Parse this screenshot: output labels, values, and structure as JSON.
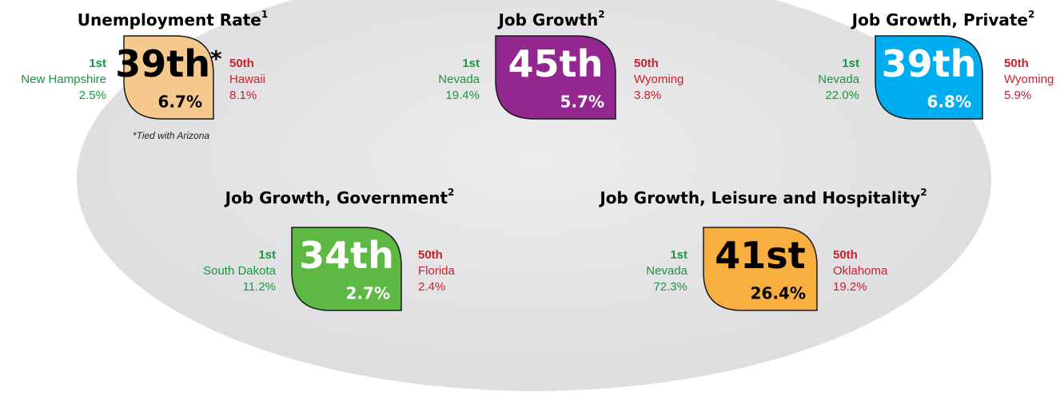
{
  "panels": [
    {
      "title": "Unemployment Rate",
      "note_ref": "1",
      "rank": "39th",
      "rank_mark": "*",
      "value": "6.7%",
      "color": "#f5c98e",
      "text_color": "#000000",
      "best": {
        "rank": "1st",
        "state": "New Hampshire",
        "value": "2.5%"
      },
      "worst": {
        "rank": "50th",
        "state": "Hawaii",
        "value": "8.1%"
      },
      "footnote": "*Tied with Arizona"
    },
    {
      "title": "Job Growth",
      "note_ref": "2",
      "rank": "45th",
      "value": "5.7%",
      "color": "#93278f",
      "text_color": "#ffffff",
      "best": {
        "rank": "1st",
        "state": "Nevada",
        "value": "19.4%"
      },
      "worst": {
        "rank": "50th",
        "state": "Wyoming",
        "value": "3.8%"
      }
    },
    {
      "title": "Job Growth, Private",
      "note_ref": "2",
      "rank": "39th",
      "value": "6.8%",
      "color": "#00aeef",
      "text_color": "#ffffff",
      "best": {
        "rank": "1st",
        "state": "Nevada",
        "value": "22.0%"
      },
      "worst": {
        "rank": "50th",
        "state": "Wyoming",
        "value": "5.9%"
      }
    },
    {
      "title": "Job Growth, Government",
      "note_ref": "2",
      "rank": "34th",
      "value": "2.7%",
      "color": "#5db844",
      "text_color": "#ffffff",
      "best": {
        "rank": "1st",
        "state": "South Dakota",
        "value": "11.2%"
      },
      "worst": {
        "rank": "50th",
        "state": "Florida",
        "value": "2.4%"
      }
    },
    {
      "title": "Job Growth, Leisure and Hospitality",
      "note_ref": "2",
      "rank": "41st",
      "value": "26.4%",
      "color": "#f9ae40",
      "text_color": "#000000",
      "best": {
        "rank": "1st",
        "state": "Nevada",
        "value": "72.3%"
      },
      "worst": {
        "rank": "50th",
        "state": "Oklahoma",
        "value": "19.2%"
      }
    }
  ]
}
